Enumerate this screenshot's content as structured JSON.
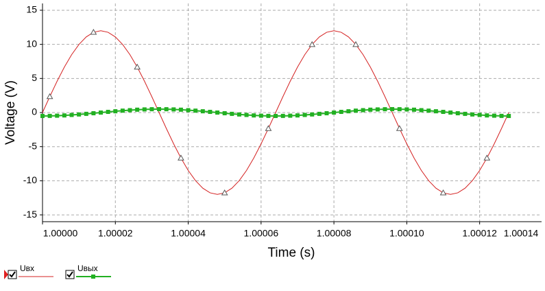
{
  "chart_data": {
    "type": "line",
    "xlabel": "Time (s)",
    "ylabel": "Voltage (V)",
    "x": [
      1.0,
      1.000002,
      1.000004,
      1.000006,
      1.000008,
      1.00001,
      1.000012,
      1.000014,
      1.000016,
      1.000018,
      1.00002,
      1.000022,
      1.000024,
      1.000026,
      1.000028,
      1.00003,
      1.000032,
      1.000034,
      1.000036,
      1.000038,
      1.00004,
      1.000042,
      1.000044,
      1.000046,
      1.000048,
      1.00005,
      1.000052,
      1.000054,
      1.000056,
      1.000058,
      1.00006,
      1.000062,
      1.000064,
      1.000066,
      1.000068,
      1.00007,
      1.000072,
      1.000074,
      1.000076,
      1.000078,
      1.00008,
      1.000082,
      1.000084,
      1.000086,
      1.000088,
      1.00009,
      1.000092,
      1.000094,
      1.000096,
      1.000098,
      1.0001,
      1.000102,
      1.000104,
      1.000106,
      1.000108,
      1.00011,
      1.000112,
      1.000114,
      1.000116,
      1.000118,
      1.00012,
      1.000122,
      1.000124,
      1.000126,
      1.000128
    ],
    "series": [
      {
        "name": "Uвх",
        "color": "#d42020",
        "marker": "triangle",
        "values": [
          0,
          2.34,
          4.59,
          6.67,
          8.49,
          9.98,
          11.09,
          11.77,
          12,
          11.77,
          11.09,
          9.98,
          8.49,
          6.67,
          4.59,
          2.34,
          0,
          -2.34,
          -4.59,
          -6.67,
          -8.49,
          -9.98,
          -11.09,
          -11.77,
          -12,
          -11.77,
          -11.09,
          -9.98,
          -8.49,
          -6.67,
          -4.59,
          -2.34,
          0,
          2.34,
          4.59,
          6.67,
          8.49,
          9.98,
          11.09,
          11.77,
          12,
          11.77,
          11.09,
          9.98,
          8.49,
          6.67,
          4.59,
          2.34,
          0,
          -2.34,
          -4.59,
          -6.67,
          -8.49,
          -9.98,
          -11.09,
          -11.77,
          -12,
          -11.77,
          -11.09,
          -9.98,
          -8.49,
          -6.67,
          -4.59,
          -2.34,
          0
        ]
      },
      {
        "name": "Uвых",
        "color": "#22b022",
        "marker": "square",
        "values": [
          -0.5,
          -0.49,
          -0.46,
          -0.42,
          -0.35,
          -0.28,
          -0.19,
          -0.1,
          0,
          0.1,
          0.19,
          0.28,
          0.35,
          0.42,
          0.46,
          0.49,
          0.5,
          0.49,
          0.46,
          0.42,
          0.35,
          0.28,
          0.19,
          0.1,
          0,
          -0.1,
          -0.19,
          -0.28,
          -0.35,
          -0.42,
          -0.46,
          -0.49,
          -0.5,
          -0.49,
          -0.46,
          -0.42,
          -0.35,
          -0.28,
          -0.19,
          -0.1,
          0,
          0.1,
          0.19,
          0.28,
          0.35,
          0.42,
          0.46,
          0.49,
          0.5,
          0.49,
          0.46,
          0.42,
          0.35,
          0.28,
          0.19,
          0.1,
          0,
          -0.1,
          -0.19,
          -0.28,
          -0.35,
          -0.42,
          -0.46,
          -0.49,
          -0.5
        ]
      }
    ],
    "xlim": [
      1.0,
      1.000137
    ],
    "ylim": [
      -16,
      16
    ],
    "xticks": [
      {
        "value": 1.0,
        "label": "1.00000"
      },
      {
        "value": 1.00002,
        "label": "1.00002"
      },
      {
        "value": 1.00004,
        "label": "1.00004"
      },
      {
        "value": 1.00006,
        "label": "1.00006"
      },
      {
        "value": 1.00008,
        "label": "1.00008"
      },
      {
        "value": 1.0001,
        "label": "1.00010"
      },
      {
        "value": 1.00012,
        "label": "1.00012"
      },
      {
        "value": 1.00014,
        "label": "1.00014"
      }
    ],
    "yticks": [
      -15,
      -10,
      -5,
      0,
      5,
      10,
      15
    ],
    "grid": true
  }
}
